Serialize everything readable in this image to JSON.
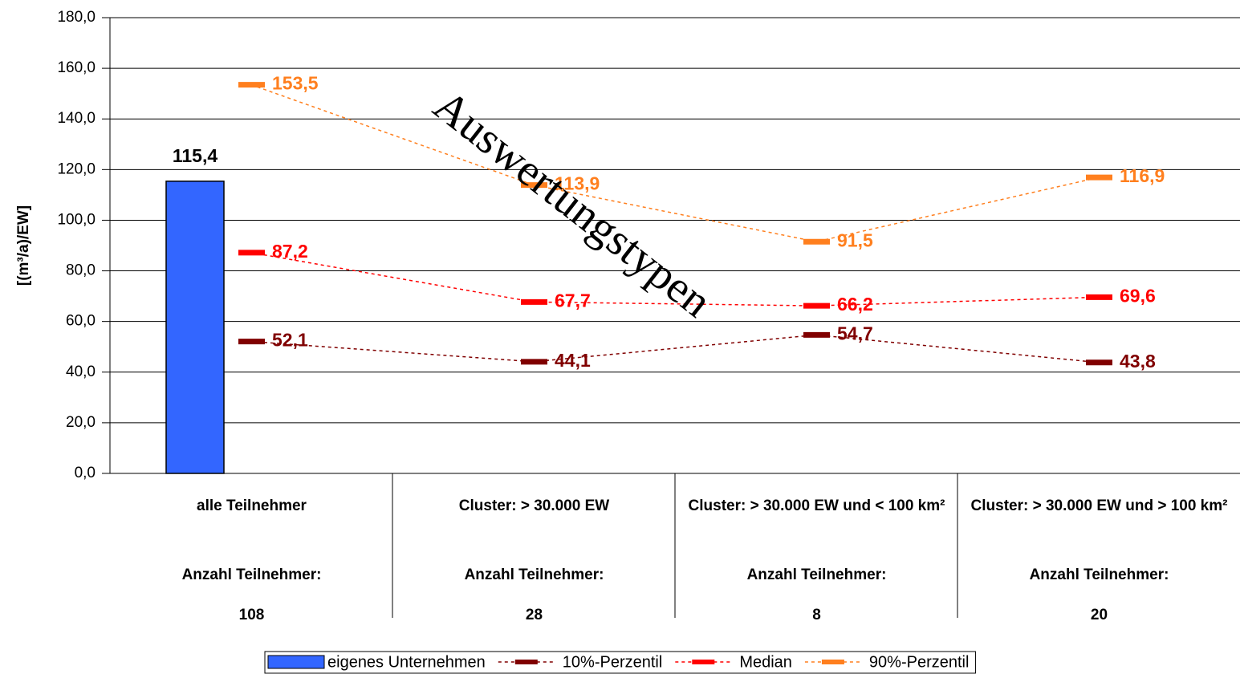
{
  "chart_data": {
    "type": "bar-line",
    "y_axis_label": "[(m³/a)/EW]",
    "annotation": "Auswertungstypen",
    "categories": [
      "alle Teilnehmer",
      "Cluster: > 30.000 EW",
      "Cluster: > 30.000 EW und < 100 km²",
      "Cluster: > 30.000 EW und > 100 km²"
    ],
    "count_label": "Anzahl Teilnehmer:",
    "counts": [
      108,
      28,
      8,
      20
    ],
    "ylim": [
      0,
      180
    ],
    "yticks": [
      {
        "value": 0,
        "label": "0,0"
      },
      {
        "value": 20,
        "label": "20,0"
      },
      {
        "value": 40,
        "label": "40,0"
      },
      {
        "value": 60,
        "label": "60,0"
      },
      {
        "value": 80,
        "label": "80,0"
      },
      {
        "value": 100,
        "label": "100,0"
      },
      {
        "value": 120,
        "label": "120,0"
      },
      {
        "value": 140,
        "label": "140,0"
      },
      {
        "value": 160,
        "label": "160,0"
      },
      {
        "value": 180,
        "label": "180,0"
      }
    ],
    "grid": true,
    "legend": "bottom",
    "series": [
      {
        "name": "eigenes Unternehmen",
        "type": "bar",
        "color": "#3366ff",
        "values": [
          115.4,
          null,
          null,
          null
        ],
        "value_labels": [
          "115,4",
          null,
          null,
          null
        ],
        "label_color": "#000000"
      },
      {
        "name": "10%-Perzentil",
        "type": "line",
        "color": "#800000",
        "values": [
          52.1,
          44.1,
          54.7,
          43.8
        ],
        "value_labels": [
          "52,1",
          "44,1",
          "54,7",
          "43,8"
        ]
      },
      {
        "name": "Median",
        "type": "line",
        "color": "#ff0000",
        "values": [
          87.2,
          67.7,
          66.2,
          69.6
        ],
        "value_labels": [
          "87,2",
          "67,7",
          "66,2",
          "69,6"
        ]
      },
      {
        "name": "90%-Perzentil",
        "type": "line",
        "color": "#ff7f1e",
        "values": [
          153.5,
          113.9,
          91.5,
          116.9
        ],
        "value_labels": [
          "153,5",
          "113,9",
          "91,5",
          "116,9"
        ]
      }
    ]
  }
}
